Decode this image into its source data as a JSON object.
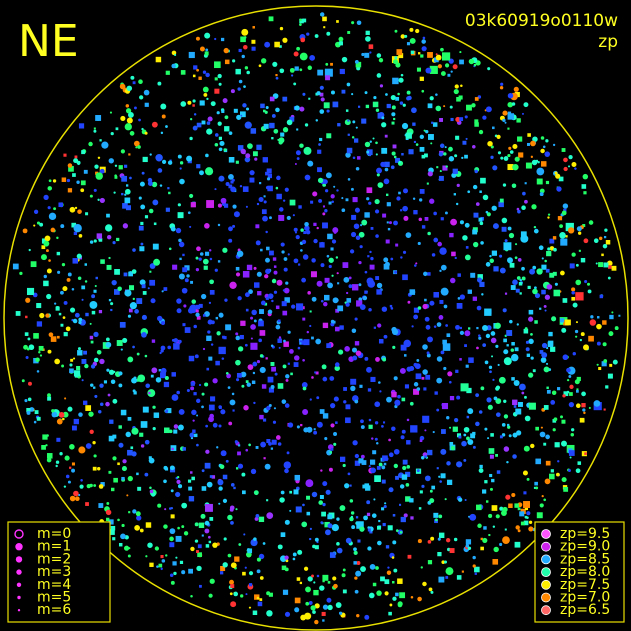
{
  "header": {
    "direction": "NE",
    "id": "03k60919o0110w",
    "mode": "zp"
  },
  "legend_m": [
    "m=0",
    "m=1",
    "m=2",
    "m=3",
    "m=4",
    "m=5",
    "m=6"
  ],
  "legend_zp": [
    "zp=9.5",
    "zp=9.0",
    "zp=8.5",
    "zp=8.0",
    "zp=7.5",
    "zp=7.0",
    "zp=6.5"
  ]
}
